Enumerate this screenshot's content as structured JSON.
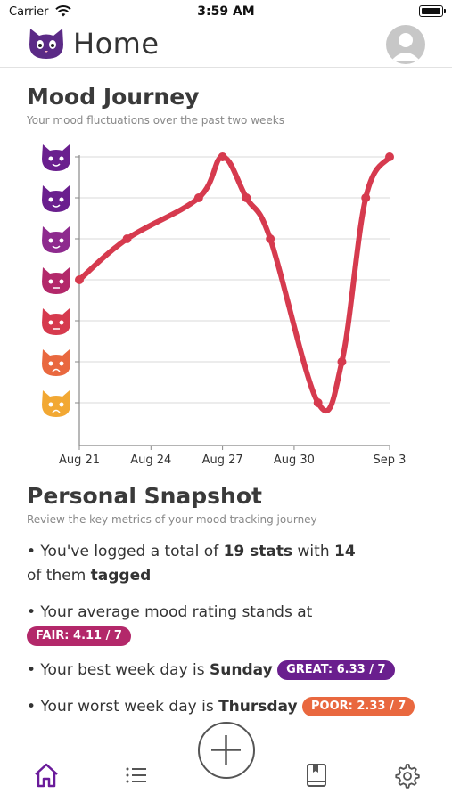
{
  "status": {
    "carrier": "Carrier",
    "time": "3:59 AM"
  },
  "header": {
    "title": "Home",
    "logo_icon": "cat-logo-icon",
    "avatar_icon": "user-avatar-icon"
  },
  "mood_journey": {
    "title": "Mood Journey",
    "subtitle": "Your mood fluctuations over the past two weeks"
  },
  "chart_data": {
    "type": "line",
    "x_ticks": [
      "Aug 21",
      "Aug 24",
      "Aug 27",
      "Aug 30",
      "Sep 3"
    ],
    "x": [
      "Aug 21",
      "Aug 23",
      "Aug 26",
      "Aug 27",
      "Aug 28",
      "Aug 29",
      "Aug 31",
      "Sep 1",
      "Sep 2",
      "Sep 3"
    ],
    "values": [
      4,
      5,
      6,
      7,
      6,
      5,
      1,
      2,
      6,
      7
    ],
    "x_days": [
      0,
      2,
      5,
      6,
      7,
      8,
      10,
      11,
      12,
      13
    ],
    "ylim": [
      1,
      7
    ],
    "y_icons": [
      "cat-love-icon",
      "cat-smile-icon",
      "cat-happy-icon",
      "cat-neutral-icon",
      "cat-angry-icon",
      "cat-crying-icon",
      "cat-scream-icon"
    ],
    "grid": true,
    "line_color": "#d63a4e"
  },
  "snapshot": {
    "title": "Personal Snapshot",
    "subtitle": "Review the key metrics of your mood tracking journey",
    "line1_a": "• You've logged a total of ",
    "line1_b": "19 stats",
    "line1_c": " with ",
    "line1_d": "14",
    "line1_e": "of them ",
    "line1_f": "tagged",
    "line2": "• Your average mood rating stands at",
    "avg_badge": "FAIR: 4.11 / 7",
    "line3_a": "• Your best week day is ",
    "line3_b": "Sunday",
    "best_badge": "GREAT: 6.33 / 7",
    "line4_a": "• Your worst week day is ",
    "line4_b": "Thursday",
    "worst_badge": "POOR: 2.33 / 7"
  },
  "colors": {
    "fair": "#b3286a",
    "great": "#6a1f8e",
    "poor": "#e9683f",
    "accent": "#6a1b9a"
  },
  "tabs": [
    "home-tab",
    "list-tab",
    "add-entry",
    "journal-tab",
    "settings-tab"
  ]
}
